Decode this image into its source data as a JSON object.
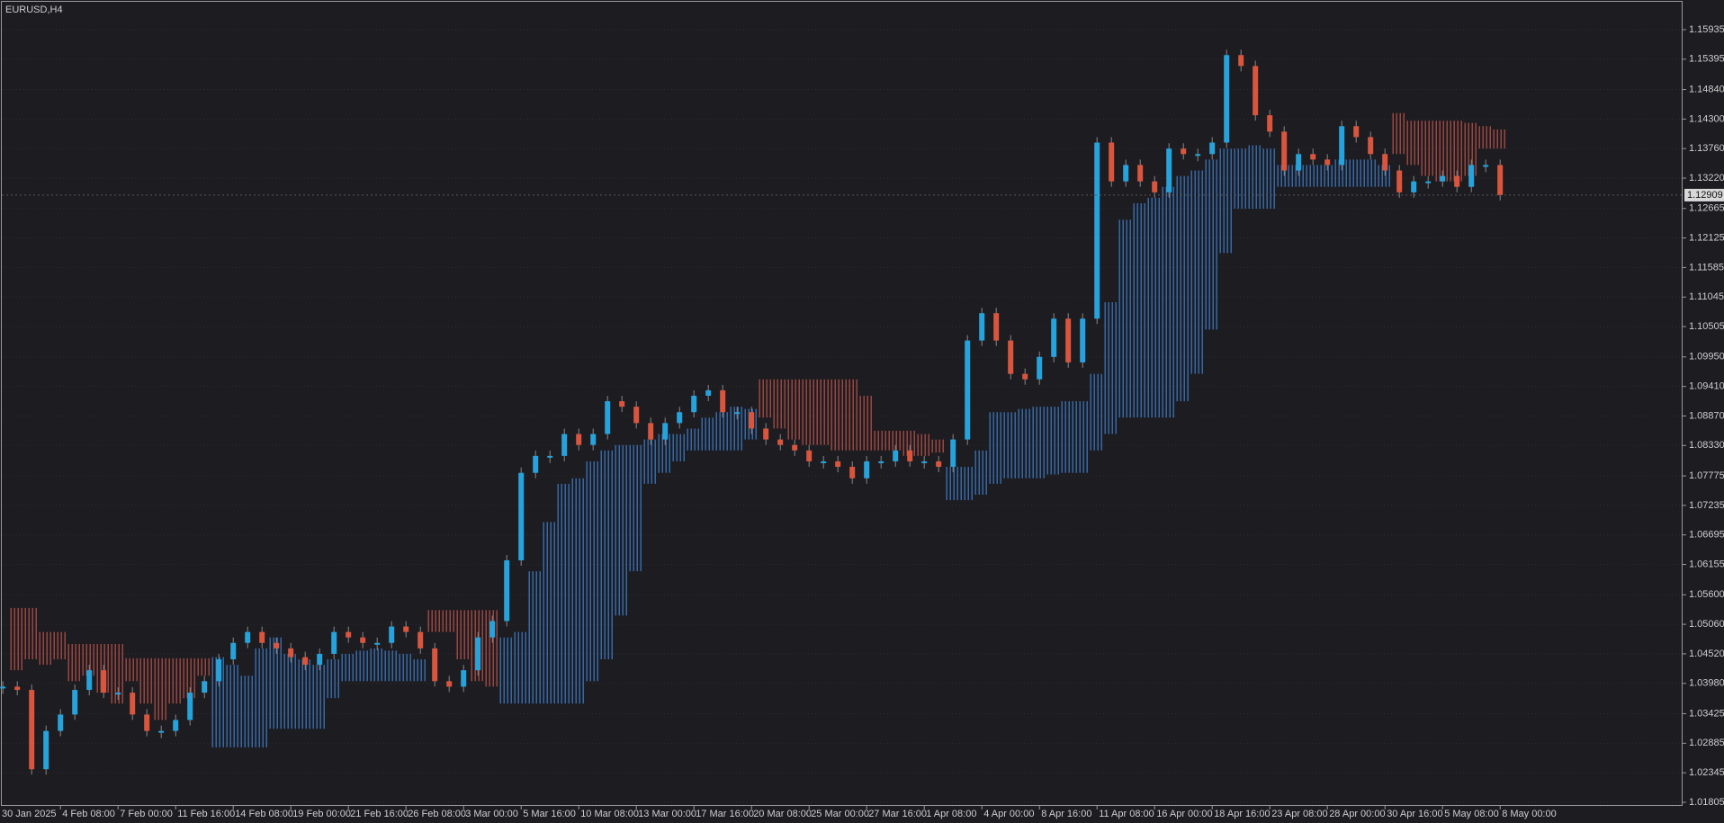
{
  "chart_data": {
    "type": "candlestick",
    "title": "EURUSD,H4",
    "categories": [
      "30 Jan 2025",
      null,
      null,
      null,
      "4 Feb 08:00",
      null,
      null,
      null,
      "7 Feb 00:00",
      null,
      null,
      null,
      "11 Feb 16:00",
      null,
      null,
      null,
      "14 Feb 08:00",
      null,
      null,
      null,
      "19 Feb 00:00",
      null,
      null,
      null,
      "21 Feb 16:00",
      null,
      null,
      null,
      "26 Feb 08:00",
      null,
      null,
      null,
      "3 Mar 00:00",
      null,
      null,
      null,
      "5 Mar 16:00",
      null,
      null,
      null,
      "10 Mar 08:00",
      null,
      null,
      null,
      "13 Mar 00:00",
      null,
      null,
      null,
      "17 Mar 16:00",
      null,
      null,
      null,
      "20 Mar 08:00",
      null,
      null,
      null,
      "25 Mar 00:00",
      null,
      null,
      null,
      "27 Mar 16:00",
      null,
      null,
      null,
      "1 Apr 08:00",
      null,
      null,
      null,
      "4 Apr 00:00",
      null,
      null,
      null,
      "8 Apr 16:00",
      null,
      null,
      null,
      "11 Apr 08:00",
      null,
      null,
      null,
      "16 Apr 00:00",
      null,
      null,
      null,
      "18 Apr 16:00",
      null,
      null,
      null,
      "23 Apr 08:00",
      null,
      null,
      null,
      "28 Apr 00:00",
      null,
      null,
      null,
      "30 Apr 16:00",
      null,
      null,
      null,
      "5 May 08:00",
      null,
      null,
      null,
      "8 May 00:00"
    ],
    "series": [
      {
        "up_color": "#27a3dc",
        "down_color": "#d9553d",
        "values": [
          1.0392,
          1.0386,
          1.0241,
          1.0311,
          1.0341,
          1.0386,
          1.0422,
          1.0381,
          1.0381,
          1.0341,
          1.0311,
          1.0311,
          1.0331,
          1.0381,
          1.0402,
          1.0442,
          1.0472,
          1.0492,
          1.0472,
          1.0462,
          1.0446,
          1.0432,
          1.0452,
          1.0492,
          1.0482,
          1.0472,
          1.0472,
          1.0502,
          1.0492,
          1.0462,
          1.0402,
          1.0392,
          1.0422,
          1.0482,
          1.0512,
          1.0623,
          1.0783,
          1.0814,
          1.0814,
          1.0854,
          1.0834,
          1.0854,
          1.0914,
          1.0904,
          1.0874,
          1.0844,
          1.0874,
          1.0894,
          1.0924,
          1.0934,
          1.0894,
          1.0894,
          1.0864,
          1.0844,
          1.0834,
          1.0824,
          1.0804,
          1.0804,
          1.0794,
          1.0773,
          1.0804,
          1.0804,
          1.0824,
          1.0804,
          1.0804,
          1.0794,
          1.0844,
          1.1025,
          1.1075,
          1.1025,
          1.0964,
          1.0954,
          1.0995,
          1.1065,
          1.0985,
          1.1065,
          1.1387,
          1.1316,
          1.1346,
          1.1316,
          1.1296,
          1.1376,
          1.1366,
          1.1366,
          1.1387,
          1.1547,
          1.1527,
          1.1437,
          1.1407,
          1.1336,
          1.1366,
          1.1356,
          1.1346,
          1.1417,
          1.1397,
          1.1366,
          1.1336,
          1.1296,
          1.1316,
          1.1316,
          1.1326,
          1.1306,
          1.1346,
          1.1346,
          1.1291
        ]
      }
    ],
    "cloud": {
      "up_color": "#3f86d8",
      "down_color": "#c9574c",
      "span_a": [
        null,
        1.0422,
        1.0442,
        1.0432,
        1.0442,
        1.0402,
        1.0412,
        1.0381,
        1.0361,
        1.0402,
        1.0361,
        1.0331,
        1.0361,
        1.0371,
        1.0412,
        1.0446,
        1.0432,
        1.0412,
        1.0462,
        1.0482,
        1.0452,
        1.0442,
        1.0432,
        1.0442,
        1.0452,
        1.0458,
        1.0462,
        1.0458,
        1.0452,
        1.0442,
        1.0492,
        1.0492,
        1.0442,
        1.0402,
        1.0392,
        1.0482,
        1.0492,
        1.0603,
        1.0693,
        1.0763,
        1.0773,
        1.0804,
        1.0824,
        1.0834,
        1.0834,
        1.0844,
        1.0854,
        1.0854,
        1.0864,
        1.0884,
        1.0894,
        1.0904,
        1.09,
        1.0884,
        1.0864,
        1.0844,
        1.0834,
        1.0834,
        1.0824,
        1.0824,
        1.0824,
        1.0824,
        1.0824,
        1.0814,
        1.0814,
        1.082,
        1.0794,
        1.0794,
        1.0824,
        1.0894,
        1.0894,
        1.09,
        1.0904,
        1.0904,
        1.0914,
        1.0914,
        1.0964,
        1.1095,
        1.1246,
        1.1276,
        1.1286,
        1.1306,
        1.1326,
        1.1336,
        1.1356,
        1.1376,
        1.1376,
        1.1382,
        1.1376,
        1.1346,
        1.1346,
        1.1346,
        1.1346,
        1.1356,
        1.1356,
        1.1356,
        1.1346,
        1.1366,
        1.1346,
        1.1326,
        1.1316,
        1.1316,
        1.1326,
        1.1376,
        1.1376
      ],
      "span_b": [
        null,
        1.0536,
        1.0536,
        1.0492,
        1.0492,
        1.047,
        1.047,
        1.047,
        1.047,
        1.0444,
        1.0444,
        1.0444,
        1.0444,
        1.0444,
        1.0444,
        1.0281,
        1.0281,
        1.0281,
        1.0281,
        1.0315,
        1.0315,
        1.0315,
        1.0315,
        1.0371,
        1.0402,
        1.0402,
        1.0402,
        1.0402,
        1.0402,
        1.0402,
        1.0532,
        1.0532,
        1.0532,
        1.0532,
        1.0532,
        1.0361,
        1.0361,
        1.0361,
        1.0361,
        1.0361,
        1.0361,
        1.0402,
        1.0442,
        1.0522,
        1.0603,
        1.0763,
        1.0783,
        1.0804,
        1.0824,
        1.0824,
        1.0824,
        1.0824,
        1.0844,
        1.0954,
        1.0954,
        1.0954,
        1.0954,
        1.0954,
        1.0954,
        1.0954,
        1.0924,
        1.086,
        1.086,
        1.086,
        1.0854,
        1.0844,
        1.0733,
        1.0733,
        1.0743,
        1.0763,
        1.0773,
        1.0773,
        1.0773,
        1.078,
        1.0783,
        1.0783,
        1.0824,
        1.0854,
        1.0884,
        1.0884,
        1.0884,
        1.0884,
        1.0914,
        1.0964,
        1.1045,
        1.1185,
        1.1266,
        1.1266,
        1.1266,
        1.1306,
        1.1306,
        1.1306,
        1.1306,
        1.1306,
        1.1306,
        1.1306,
        1.1306,
        1.1441,
        1.1427,
        1.1427,
        1.1427,
        1.1427,
        1.1423,
        1.1417,
        1.1411
      ]
    },
    "current_price": 1.12909,
    "ylim": [
      1.01739,
      1.16428
    ],
    "yticks": [
      1.15935,
      1.15395,
      {
        "value": 1.1484,
        "label": "1.14840"
      },
      {
        "value": 1.143,
        "label": "1.14300"
      },
      {
        "value": 1.1376,
        "label": "1.13760"
      },
      {
        "value": 1.1322,
        "label": "1.13220"
      },
      1.12665,
      1.12125,
      1.11585,
      1.11045,
      1.10505,
      {
        "value": 1.0995,
        "label": "1.09950"
      },
      {
        "value": 1.0941,
        "label": "1.09410"
      },
      {
        "value": 1.0887,
        "label": "1.08870"
      },
      {
        "value": 1.0833,
        "label": "1.08330"
      },
      1.07775,
      1.07235,
      1.06695,
      1.06155,
      {
        "value": 1.056,
        "label": "1.05600"
      },
      {
        "value": 1.0506,
        "label": "1.05060"
      },
      {
        "value": 1.0452,
        "label": "1.04520"
      },
      {
        "value": 1.0398,
        "label": "1.03980"
      },
      1.03425,
      1.02885,
      1.02345,
      1.01805
    ],
    "grid": true
  }
}
